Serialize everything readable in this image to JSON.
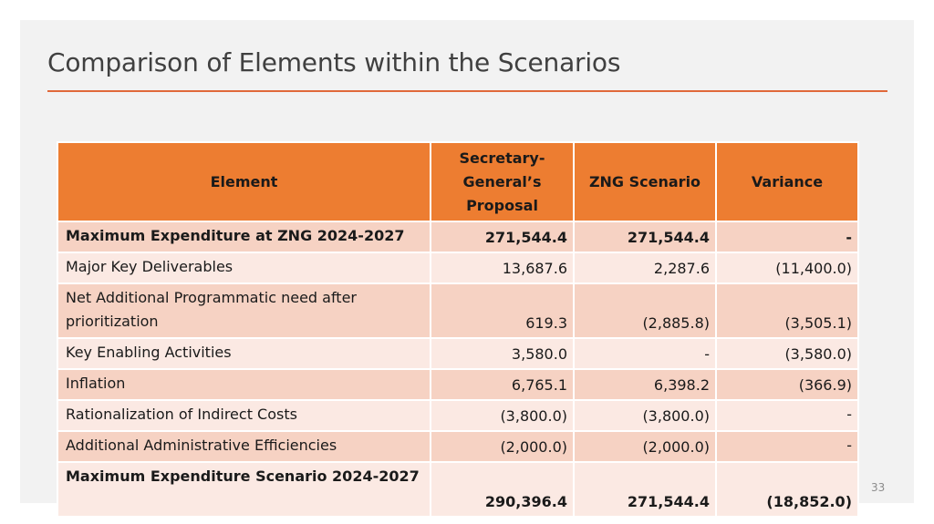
{
  "slide": {
    "title": "Comparison of Elements within the Scenarios",
    "page_number": "33"
  },
  "colors": {
    "accent": "#ed7d31",
    "rule": "#e0693a",
    "row_dark": "#f6d2c3",
    "row_light": "#fbe9e3"
  },
  "table": {
    "headers": {
      "element": "Element",
      "sg_proposal": "Secretary-General’s Proposal",
      "zng": "ZNG Scenario",
      "variance": "Variance"
    },
    "rows": [
      {
        "element": "Maximum Expenditure at ZNG 2024-2027",
        "sg": "271,544.4",
        "zng": "271,544.4",
        "variance": "-"
      },
      {
        "element": "Major Key Deliverables",
        "sg": "13,687.6",
        "zng": "2,287.6",
        "variance": "(11,400.0)"
      },
      {
        "element": "Net Additional Programmatic need after prioritization",
        "sg": "619.3",
        "zng": "(2,885.8)",
        "variance": "(3,505.1)"
      },
      {
        "element": "Key Enabling Activities",
        "sg": "3,580.0",
        "zng": "-",
        "variance": "(3,580.0)"
      },
      {
        "element": "Inflation",
        "sg": "6,765.1",
        "zng": "6,398.2",
        "variance": "(366.9)"
      },
      {
        "element": "Rationalization of Indirect Costs",
        "sg": "(3,800.0)",
        "zng": "(3,800.0)",
        "variance": "-"
      },
      {
        "element": "Additional Administrative Efficiencies",
        "sg": "(2,000.0)",
        "zng": "(2,000.0)",
        "variance": "-"
      },
      {
        "element": "Maximum Expenditure Scenario 2024-2027",
        "sg": "290,396.4",
        "zng": "271,544.4",
        "variance": "(18,852.0)"
      }
    ]
  }
}
